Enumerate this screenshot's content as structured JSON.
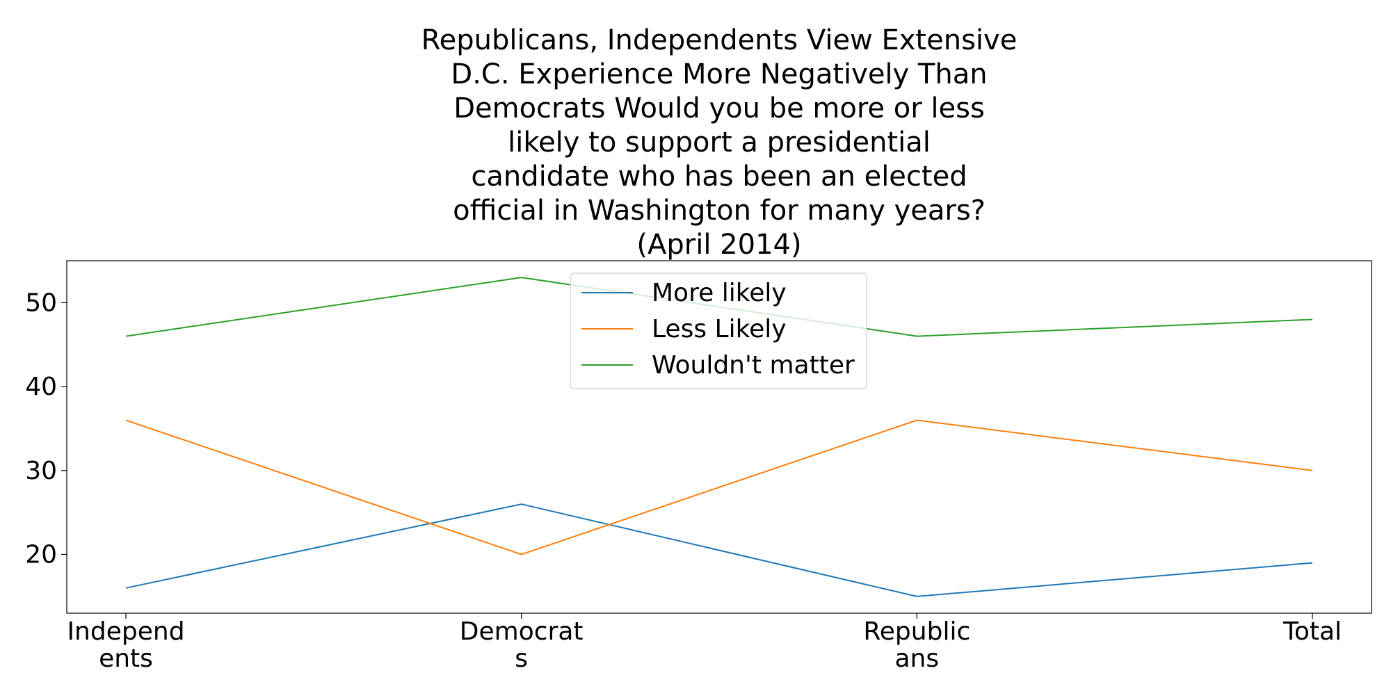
{
  "chart_data": {
    "type": "line",
    "title_lines": [
      "Republicans, Independents View Extensive",
      "D.C. Experience More Negatively Than",
      "Democrats Would you be more or less",
      "likely to support a presidential",
      "candidate who has been an elected",
      "official in Washington for many years?",
      "(April 2014)"
    ],
    "categories": [
      [
        "Independ",
        "ents"
      ],
      [
        "Democrat",
        "s"
      ],
      [
        "Republic",
        "ans"
      ],
      [
        "Total"
      ]
    ],
    "series": [
      {
        "name": "More likely",
        "values": [
          16,
          26,
          15,
          19
        ],
        "color": "#1f77b4"
      },
      {
        "name": "Less Likely",
        "values": [
          36,
          20,
          36,
          30
        ],
        "color": "#ff7f0e"
      },
      {
        "name": "Wouldn't matter",
        "values": [
          46,
          53,
          46,
          48
        ],
        "color": "#2ca02c"
      }
    ],
    "ylim": [
      13,
      55
    ],
    "yticks": [
      20,
      30,
      40,
      50
    ],
    "grid": false,
    "legend_position": "upper center"
  }
}
